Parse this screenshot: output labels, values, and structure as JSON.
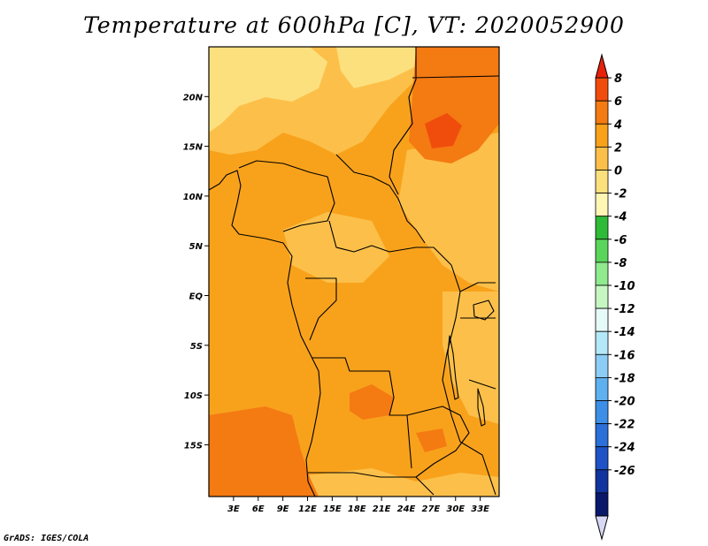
{
  "title": "Temperature at 600hPa [C], VT: 2020052900",
  "credit": "GrADS: IGES/COLA",
  "chart_data": {
    "type": "heatmap",
    "field": "temperature",
    "level": "600hPa",
    "units": "C",
    "x_ticks": [
      "3E",
      "6E",
      "9E",
      "12E",
      "15E",
      "18E",
      "21E",
      "24E",
      "27E",
      "30E",
      "33E"
    ],
    "x_tick_values": [
      3,
      6,
      9,
      12,
      15,
      18,
      21,
      24,
      27,
      30,
      33
    ],
    "y_ticks": [
      "20N",
      "15N",
      "10N",
      "5N",
      "EQ",
      "5S",
      "10S",
      "15S"
    ],
    "y_tick_values": [
      20,
      15,
      10,
      5,
      0,
      -5,
      -10,
      -15
    ],
    "lon_range": [
      0,
      35
    ],
    "lat_range": [
      -20,
      25
    ],
    "colorbar": {
      "labels": [
        "8",
        "6",
        "4",
        "2",
        "0",
        "-2",
        "-4",
        "-6",
        "-8",
        "-10",
        "-12",
        "-14",
        "-16",
        "-18",
        "-20",
        "-22",
        "-24",
        "-26"
      ],
      "levels": [
        8,
        6,
        4,
        2,
        0,
        -2,
        -4,
        -6,
        -8,
        -10,
        -12,
        -14,
        -16,
        -18,
        -20,
        -22,
        -24,
        -26
      ],
      "colors": [
        "#e8220a",
        "#f04d0c",
        "#f47a12",
        "#f9a11b",
        "#fcc04a",
        "#fde07e",
        "#fff6b4",
        "#2fba38",
        "#5ad55a",
        "#90ea8e",
        "#c6f7c2",
        "#e6fbf8",
        "#b4e8f8",
        "#8ccdf5",
        "#5fb0ef",
        "#3c8ee6",
        "#2b6fd9",
        "#1e52c6",
        "#12349e",
        "#0a186a",
        "#d8d8f4"
      ]
    }
  }
}
